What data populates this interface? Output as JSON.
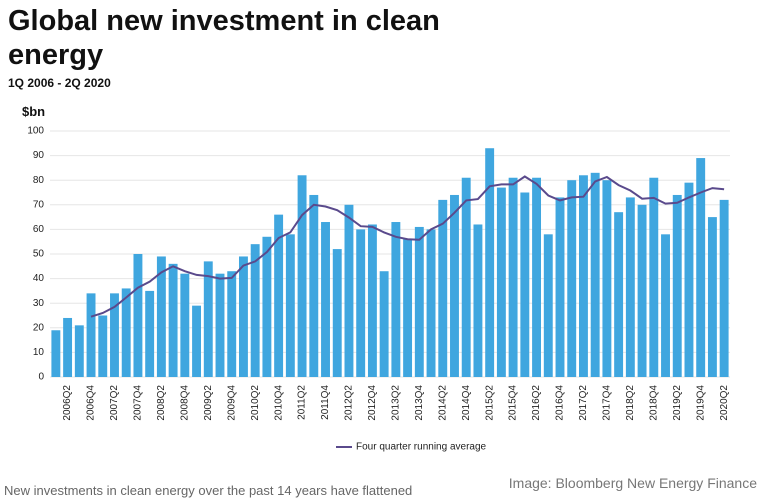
{
  "chart_data": {
    "type": "bar",
    "title": "Global new investment in clean energy",
    "subtitle": "1Q 2006 - 2Q 2020",
    "y_label": "$bn",
    "caption": "New investments in clean energy over the past 14 years have flattened",
    "credit": "Image: Bloomberg New Energy Finance",
    "categories": [
      null,
      "2006Q2",
      null,
      "2006Q4",
      null,
      "2007Q2",
      null,
      "2007Q4",
      null,
      "2008Q2",
      null,
      "2008Q4",
      null,
      "2009Q2",
      null,
      "2009Q4",
      null,
      "2010Q2",
      null,
      "2010Q4",
      null,
      "2011Q2",
      null,
      "2011Q4",
      null,
      "2012Q2",
      null,
      "2012Q4",
      null,
      "2013Q2",
      null,
      "2013Q4",
      null,
      "2014Q2",
      null,
      "2014Q4",
      null,
      "2015Q2",
      null,
      "2015Q4",
      null,
      "2016Q2",
      null,
      "2016Q4",
      null,
      "2017Q2",
      null,
      "2017Q4",
      null,
      "2018Q2",
      null,
      "2018Q4",
      null,
      "2019Q2",
      null,
      "2019Q4",
      null,
      "2020Q2"
    ],
    "values": [
      19,
      24,
      21,
      34,
      25,
      34,
      36,
      50,
      35,
      49,
      46,
      42,
      29,
      47,
      42,
      43,
      49,
      54,
      57,
      66,
      58,
      82,
      74,
      63,
      52,
      70,
      60,
      62,
      43,
      63,
      56,
      61,
      60,
      72,
      74,
      81,
      62,
      93,
      77,
      81,
      75,
      81,
      58,
      73,
      80,
      82,
      83,
      80,
      67,
      73,
      70,
      81,
      58,
      74,
      79,
      89,
      65,
      72
    ],
    "color": "#3fa6df",
    "line": {
      "name": "Four quarter running average",
      "color": "#5a4a8c",
      "values": [
        null,
        null,
        null,
        24.5,
        26,
        28.5,
        32.3,
        36.3,
        38.8,
        42.5,
        45,
        43,
        41.5,
        41,
        40,
        40.3,
        45.3,
        47,
        50.8,
        56.5,
        58.8,
        65.8,
        70,
        69.3,
        67.8,
        64.8,
        61.3,
        61,
        58.8,
        57,
        56,
        55.8,
        60,
        62.3,
        66.8,
        71.8,
        72.3,
        77.5,
        78.3,
        78.3,
        81.5,
        78.5,
        73.8,
        71.8,
        73,
        73.3,
        79.5,
        81.3,
        78,
        75.8,
        72.5,
        72.8,
        70.5,
        70.8,
        73,
        75,
        76.8,
        76.3
      ]
    },
    "ylim": [
      0,
      100
    ],
    "yticks": [
      0,
      10,
      20,
      30,
      40,
      50,
      60,
      70,
      80,
      90,
      100
    ],
    "grid": true
  }
}
